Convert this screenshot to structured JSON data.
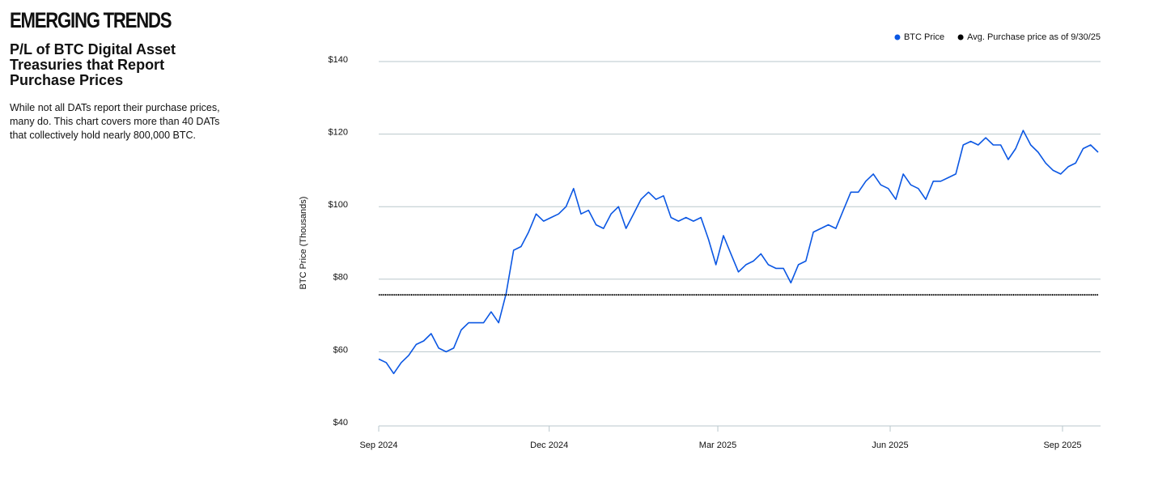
{
  "header": {
    "brand": "EMERGING TRENDS",
    "title": "P/L of BTC Digital Asset Treasuries that Report Purchase Prices",
    "description": "While not all DATs report their purchase prices, many do. This chart covers  more than 40 DATs that collectively hold nearly 800,000 BTC."
  },
  "chart_data": {
    "type": "line",
    "ylabel": "BTC Price (Thousands)",
    "series": [
      {
        "name": "BTC Price",
        "color": "#0b57e3",
        "values": [
          58,
          57,
          54,
          57,
          59,
          62,
          63,
          65,
          61,
          60,
          61,
          66,
          68,
          68,
          68,
          71,
          68,
          76,
          88,
          89,
          93,
          98,
          96,
          97,
          98,
          100,
          105,
          98,
          99,
          95,
          94,
          98,
          100,
          94,
          98,
          102,
          104,
          102,
          103,
          97,
          96,
          97,
          96,
          97,
          91,
          84,
          92,
          87,
          82,
          84,
          85,
          87,
          84,
          83,
          83,
          79,
          84,
          85,
          93,
          94,
          95,
          94,
          99,
          104,
          104,
          107,
          109,
          106,
          105,
          102,
          109,
          106,
          105,
          102,
          107,
          107,
          108,
          109,
          117,
          118,
          117,
          119,
          117,
          117,
          113,
          116,
          121,
          117,
          115,
          112,
          110,
          109,
          111,
          112,
          116,
          117,
          115
        ]
      }
    ],
    "hline": {
      "name": "Avg. Purchase price as of 9/30/25",
      "value": 75.7,
      "color": "#000000"
    },
    "xlim": [
      0,
      96
    ],
    "xticks": [
      {
        "value": 0,
        "label": "Sep 2024"
      },
      {
        "value": 22.75,
        "label": "Dec 2024"
      },
      {
        "value": 45.25,
        "label": "Mar 2025"
      },
      {
        "value": 68.25,
        "label": "Jun 2025"
      },
      {
        "value": 91.25,
        "label": "Sep 2025"
      }
    ],
    "ylim": [
      40,
      140
    ],
    "yticks": [
      {
        "value": 40,
        "label": "$40"
      },
      {
        "value": 60,
        "label": "$60"
      },
      {
        "value": 80,
        "label": "$80"
      },
      {
        "value": 100,
        "label": "$100"
      },
      {
        "value": 120,
        "label": "$120"
      },
      {
        "value": 140,
        "label": "$140"
      }
    ],
    "grid": true,
    "legend": "top-right"
  }
}
